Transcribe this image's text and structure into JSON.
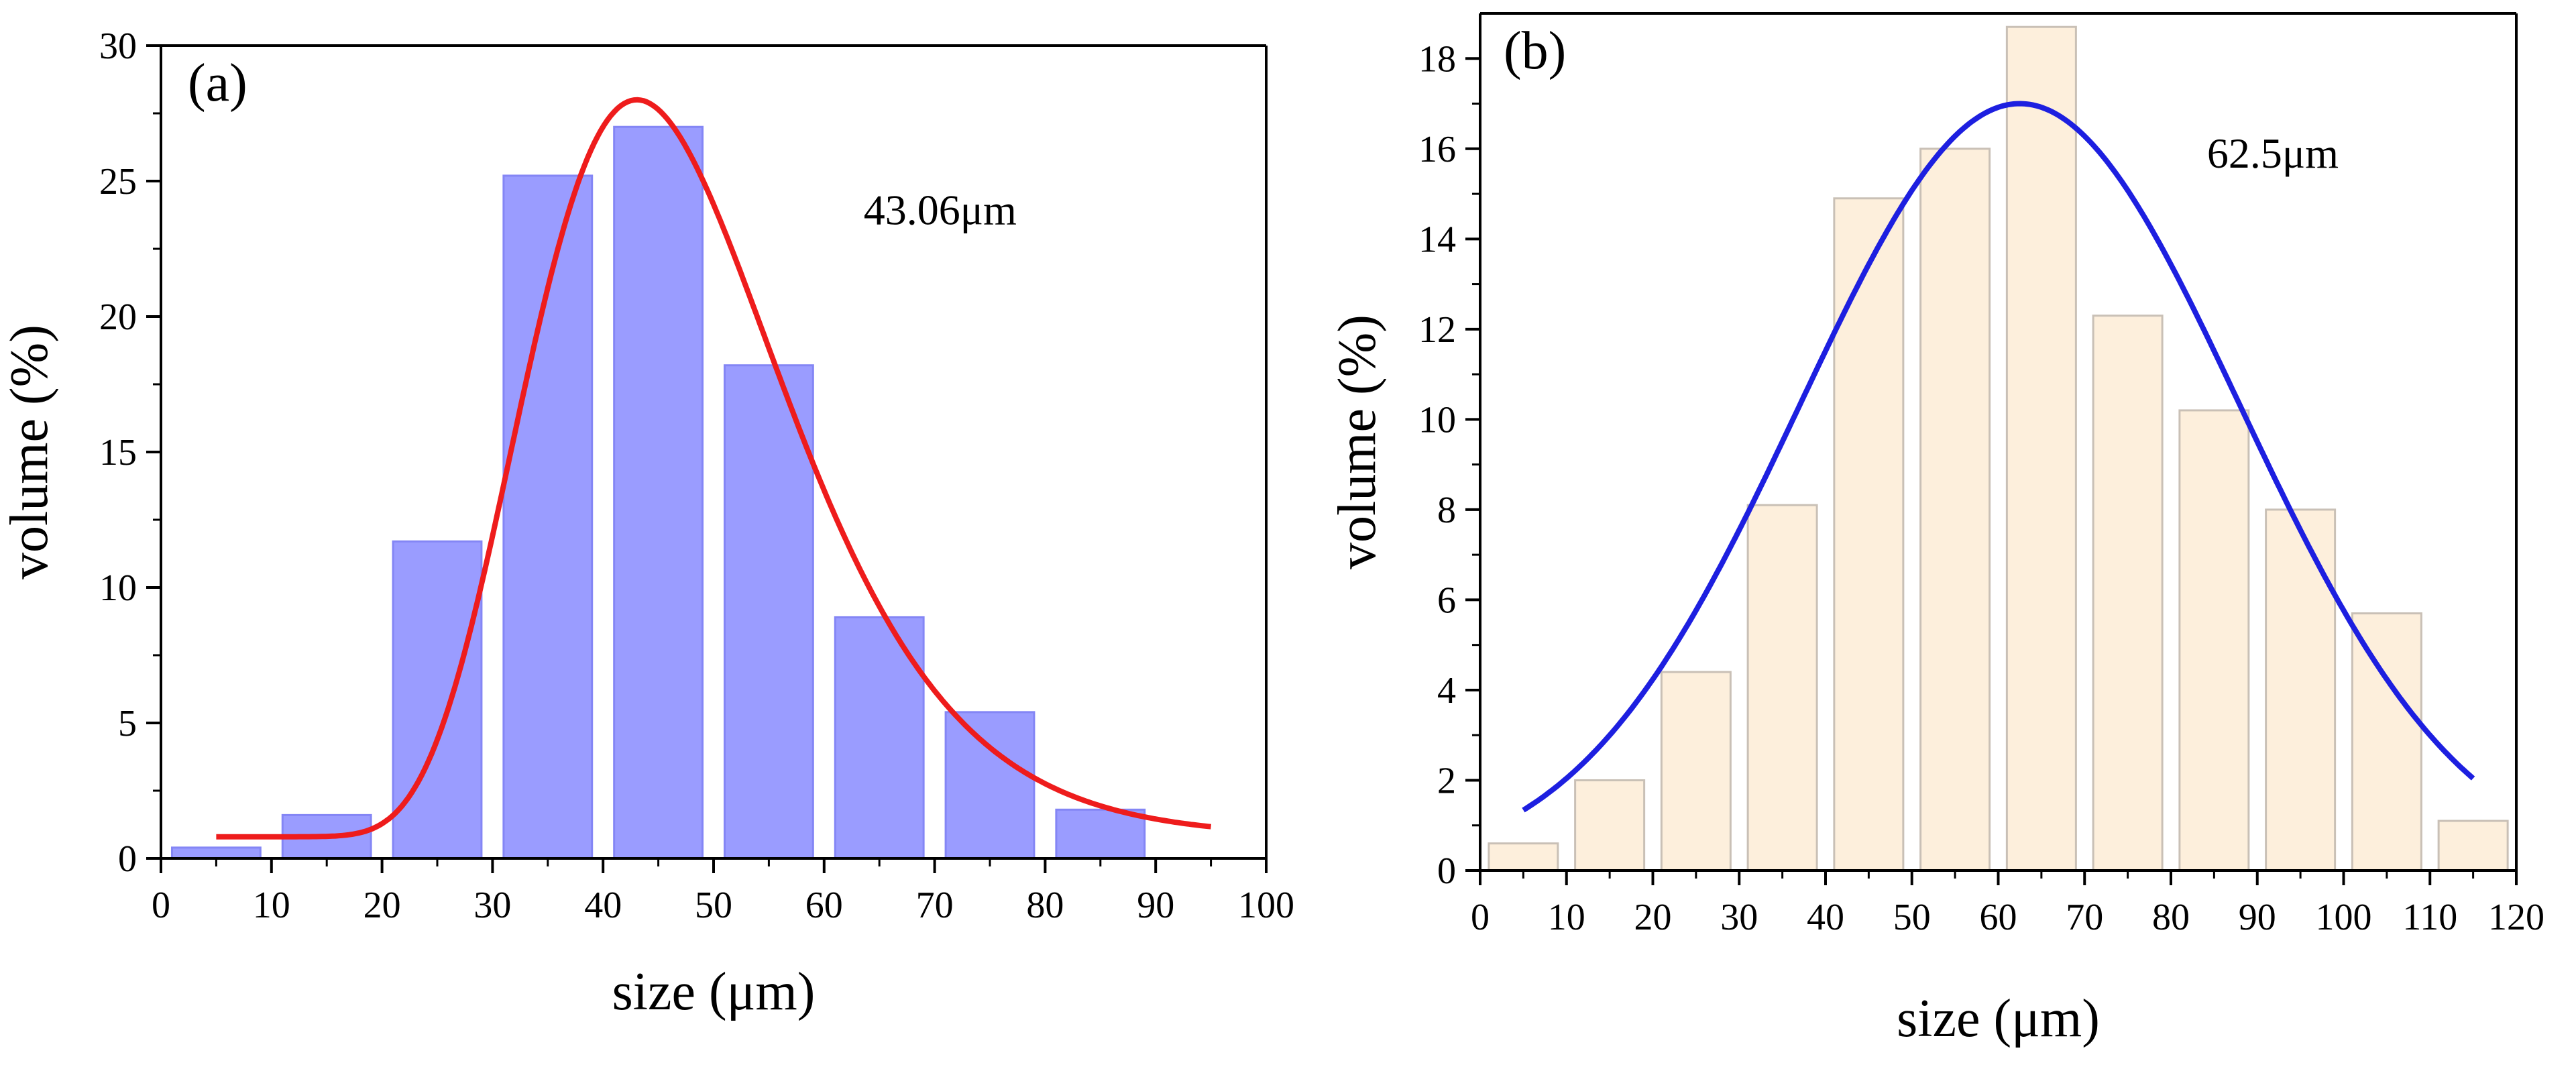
{
  "chart_data": [
    {
      "type": "bar",
      "panel": "(a)",
      "annotation": "43.06μm",
      "xlabel": "size (μm)",
      "ylabel": "volume (%)",
      "xlim": [
        0,
        100
      ],
      "ylim": [
        0,
        30
      ],
      "xticks": [
        0,
        10,
        20,
        30,
        40,
        50,
        60,
        70,
        80,
        90,
        100
      ],
      "yticks": [
        0,
        5,
        10,
        15,
        20,
        25,
        30
      ],
      "bin_centers": [
        5,
        15,
        25,
        35,
        45,
        55,
        65,
        75,
        85
      ],
      "values": [
        0.4,
        1.6,
        11.7,
        25.2,
        27.0,
        18.2,
        8.9,
        5.4,
        1.8
      ],
      "bar_color": "#9a9cff",
      "bar_edge": "#8486f5",
      "fit": {
        "type": "lognormal",
        "peak": 43.06,
        "peak_value": 28.0,
        "x_start": 5,
        "x_end": 95,
        "baseline": 0.8,
        "color": "#ee1c1c"
      }
    },
    {
      "type": "bar",
      "panel": "(b)",
      "annotation": "62.5μm",
      "xlabel": "size (μm)",
      "ylabel": "volume (%)",
      "xlim": [
        0,
        120
      ],
      "ylim": [
        0,
        19
      ],
      "xticks": [
        0,
        10,
        20,
        30,
        40,
        50,
        60,
        70,
        80,
        90,
        100,
        110,
        120
      ],
      "yticks": [
        0,
        2,
        4,
        6,
        8,
        10,
        12,
        14,
        16,
        18
      ],
      "bin_centers": [
        5,
        15,
        25,
        35,
        45,
        55,
        65,
        75,
        85,
        95,
        105,
        115
      ],
      "values": [
        0.6,
        2.0,
        4.4,
        8.1,
        14.9,
        16.0,
        18.7,
        12.3,
        10.2,
        8.0,
        5.7,
        1.1
      ],
      "bar_color": "#fdefdc",
      "bar_edge": "#c9c0b6",
      "fit": {
        "type": "gaussian",
        "peak": 62.5,
        "peak_value": 17.0,
        "sigma": 25.5,
        "x_start": 5,
        "x_end": 115,
        "color": "#1d1fe0"
      }
    }
  ]
}
